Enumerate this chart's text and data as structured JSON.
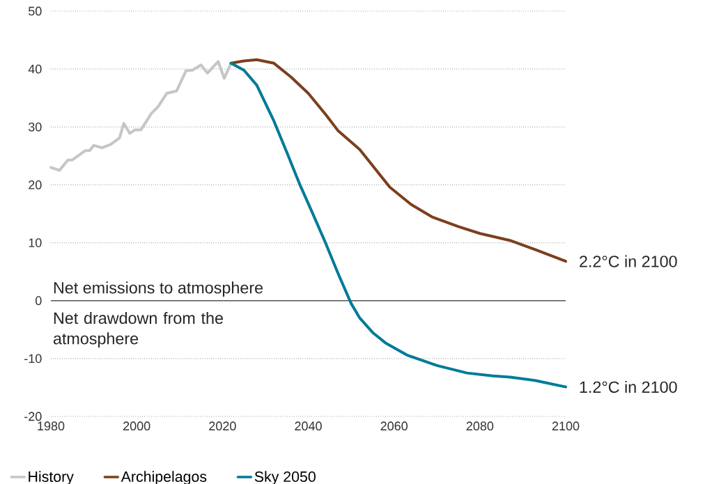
{
  "chart_data": {
    "type": "line",
    "xlim": [
      1980,
      2100
    ],
    "ylim": [
      -20,
      50
    ],
    "xticks": [
      1980,
      2000,
      2020,
      2040,
      2060,
      2080,
      2100
    ],
    "yticks": [
      -20,
      -10,
      0,
      10,
      20,
      30,
      40,
      50
    ],
    "grid": "y",
    "legend": "bottom left",
    "marker": "none",
    "line_style": "solid",
    "series": [
      {
        "name": "History",
        "color": "#c6c6c6",
        "x": [
          1980,
          1982,
          1984,
          1985,
          1988,
          1989,
          1990,
          1992,
          1994,
          1996,
          1997,
          1998.4,
          1999.6,
          2001,
          2003.4,
          2005,
          2007,
          2009.3,
          2011.5,
          2013,
          2015,
          2016.5,
          2019,
          2020.4,
          2022
        ],
        "values": [
          23.0,
          22.5,
          24.3,
          24.3,
          25.9,
          25.9,
          26.8,
          26.4,
          27.0,
          28.1,
          30.6,
          28.9,
          29.5,
          29.5,
          32.3,
          33.5,
          35.8,
          36.2,
          39.7,
          39.8,
          40.7,
          39.3,
          41.3,
          38.4,
          41.0
        ]
      },
      {
        "name": "Archipelagos",
        "color": "#7b3f1e",
        "x": [
          2022,
          2025,
          2028,
          2032,
          2036,
          2040,
          2044,
          2047,
          2052,
          2059,
          2064,
          2069,
          2075,
          2080,
          2087,
          2093,
          2100
        ],
        "values": [
          41.0,
          41.4,
          41.6,
          41.0,
          38.6,
          35.8,
          32.2,
          29.3,
          26.1,
          19.6,
          16.6,
          14.4,
          12.8,
          11.6,
          10.4,
          8.8,
          6.8
        ]
      },
      {
        "name": "Sky 2050",
        "color": "#007a99",
        "x": [
          2022,
          2025,
          2028,
          2032,
          2035,
          2038,
          2041,
          2044,
          2047,
          2050,
          2052,
          2055,
          2058,
          2063,
          2070,
          2077,
          2083,
          2087,
          2093,
          2100
        ],
        "values": [
          41.0,
          39.8,
          37.2,
          31.0,
          25.6,
          20.1,
          15.1,
          10.0,
          4.6,
          -0.5,
          -3.0,
          -5.5,
          -7.3,
          -9.4,
          -11.2,
          -12.5,
          -13.0,
          -13.2,
          -13.8,
          -14.9
        ]
      }
    ],
    "ref_lines": [
      {
        "axis": "y",
        "value": 0,
        "color": "#555555"
      }
    ],
    "annotations": [
      "Net emissions to atmosphere",
      "Net drawdown from the atmosphere",
      {
        "text": "2.2°C in 2100",
        "x": 2100,
        "y": 6.8
      },
      {
        "text": "1.2°C in 2100",
        "x": 2100,
        "y": -14.9
      }
    ]
  }
}
